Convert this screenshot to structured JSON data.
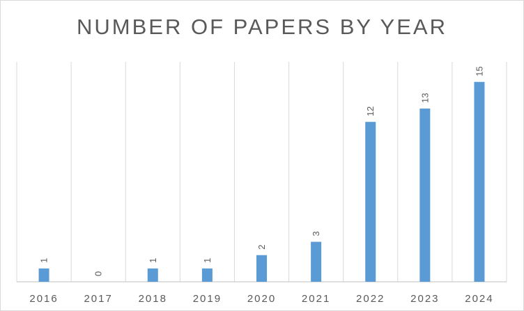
{
  "chart_data": {
    "type": "bar",
    "title": "NUMBER OF PAPERS BY YEAR",
    "categories": [
      "2016",
      "2017",
      "2018",
      "2019",
      "2020",
      "2021",
      "2022",
      "2023",
      "2024"
    ],
    "values": [
      1,
      0,
      1,
      1,
      2,
      3,
      12,
      13,
      15
    ],
    "data_labels": [
      "1",
      "0",
      "1",
      "1",
      "2",
      "3",
      "12",
      "13",
      "15"
    ],
    "xlabel": "",
    "ylabel": "",
    "ylim": [
      0,
      16.5
    ],
    "bar_color": "#5b9bd5",
    "gridlines": "vertical",
    "legend": "none"
  }
}
